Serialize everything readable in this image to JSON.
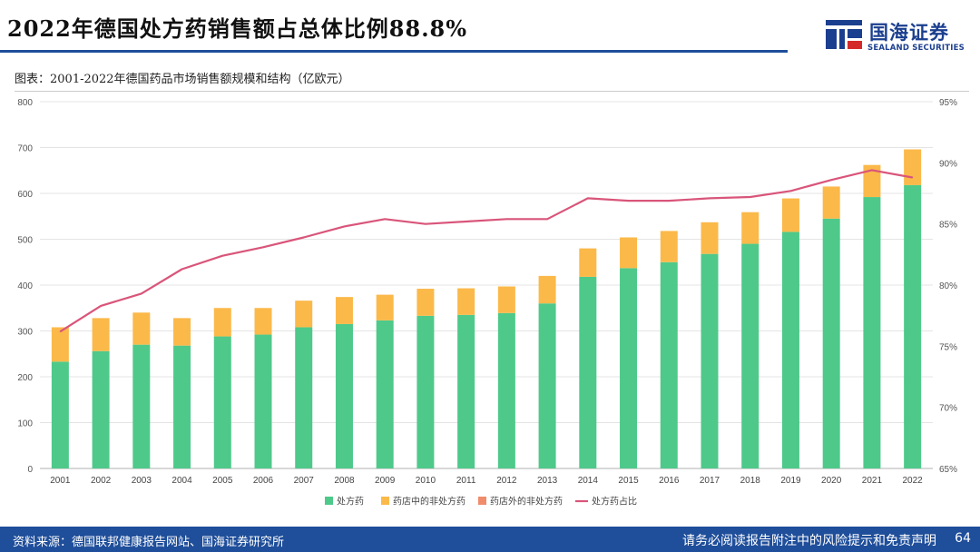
{
  "header": {
    "title": "2022年德国处方药销售额占总体比例88.8%",
    "subtitle": "图表：2001-2022年德国药品市场销售额规模和结构（亿欧元）"
  },
  "logo": {
    "name_cn": "国海证券",
    "name_en": "SEALAND SECURITIES"
  },
  "footer": {
    "source": "资料来源：德国联邦健康报告网站、国海证券研究所",
    "disclaimer": "请务必阅读报告附注中的风险提示和免责声明",
    "page": "64"
  },
  "colors": {
    "rx": "#4ec98a",
    "otc_pharmacy": "#fbb94a",
    "otc_outside": "#f08c6b",
    "ratio": "#d9557a",
    "brand": "#1f4e9a"
  },
  "chart_data": {
    "type": "bar",
    "stacked": true,
    "categories": [
      "2001",
      "2002",
      "2003",
      "2004",
      "2005",
      "2006",
      "2007",
      "2008",
      "2009",
      "2010",
      "2011",
      "2012",
      "2013",
      "2014",
      "2015",
      "2016",
      "2017",
      "2018",
      "2019",
      "2020",
      "2021",
      "2022"
    ],
    "series": [
      {
        "name": "处方药",
        "values": [
          233,
          256,
          270,
          268,
          288,
          292,
          308,
          315,
          323,
          333,
          335,
          339,
          360,
          418,
          437,
          450,
          468,
          490,
          516,
          545,
          592,
          618
        ]
      },
      {
        "name": "药店中的非处方药",
        "values": [
          75,
          72,
          70,
          60,
          62,
          58,
          58,
          59,
          56,
          59,
          58,
          58,
          60,
          62,
          67,
          68,
          69,
          69,
          73,
          70,
          70,
          78
        ]
      },
      {
        "name": "药店外的非处方药",
        "values": [
          0,
          0,
          0,
          0,
          0,
          0,
          0,
          0,
          0,
          0,
          0,
          0,
          0,
          0,
          0,
          0,
          0,
          0,
          0,
          0,
          0,
          0
        ]
      }
    ],
    "line_series": {
      "name": "处方药占比",
      "axis": "right",
      "values": [
        76.2,
        78.3,
        79.3,
        81.3,
        82.4,
        83.1,
        83.9,
        84.8,
        85.4,
        85.0,
        85.2,
        85.4,
        85.4,
        87.1,
        86.9,
        86.9,
        87.1,
        87.2,
        87.7,
        88.6,
        89.4,
        88.8
      ]
    },
    "y_left": {
      "min": 0,
      "max": 800,
      "ticks": [
        "0",
        "100",
        "200",
        "300",
        "400",
        "500",
        "600",
        "700",
        "800"
      ]
    },
    "y_right": {
      "min": 65,
      "max": 95,
      "ticks": [
        "65%",
        "70%",
        "75%",
        "80%",
        "85%",
        "90%",
        "95%"
      ]
    },
    "legend": [
      "处方药",
      "药店中的非处方药",
      "药店外的非处方药",
      "处方药占比"
    ],
    "legend_position": "bottom"
  }
}
